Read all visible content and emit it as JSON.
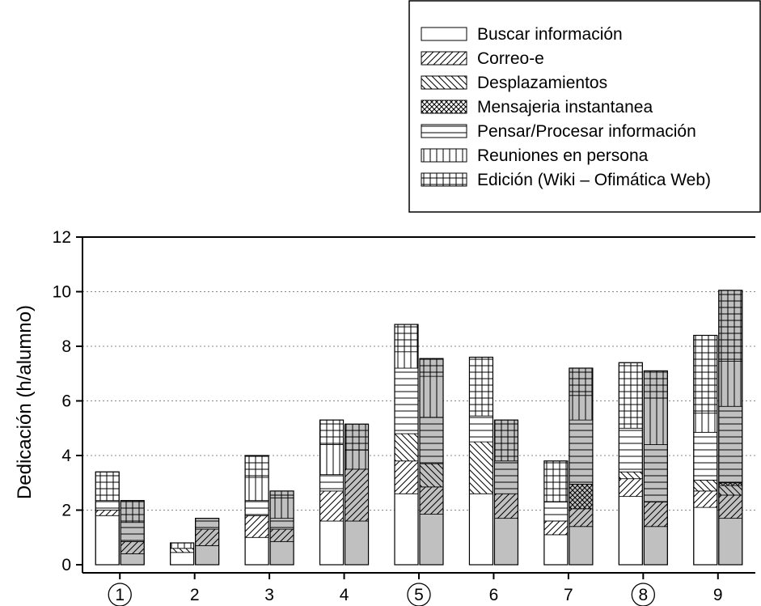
{
  "chart_data": {
    "type": "bar",
    "stacked": true,
    "grouped_pairs": true,
    "ylabel": "Dedicación (h/alumno)",
    "xlabel": "",
    "ylim": [
      0,
      12
    ],
    "yticks": [
      0,
      2,
      4,
      6,
      8,
      10,
      12
    ],
    "grid": "horizontal-dotted",
    "legend_position": "top-right",
    "categories": [
      "1",
      "2",
      "3",
      "4",
      "5",
      "6",
      "7",
      "8",
      "9"
    ],
    "circled_categories": [
      "1",
      "5",
      "8"
    ],
    "series": [
      {
        "name": "Buscar información",
        "pattern": "blank"
      },
      {
        "name": "Correo-e",
        "pattern": "hatch-forward"
      },
      {
        "name": "Desplazamientos",
        "pattern": "hatch-back"
      },
      {
        "name": "Mensajeria instantanea",
        "pattern": "crosshatch"
      },
      {
        "name": "Pensar/Procesar información",
        "pattern": "horizontal"
      },
      {
        "name": "Reuniones en persona",
        "pattern": "vertical"
      },
      {
        "name": "Edición (Wiki – Ofimática Web)",
        "pattern": "grid"
      }
    ],
    "bars": [
      {
        "category": "1",
        "shaded": false,
        "segments": [
          1.8,
          0.2,
          0.0,
          0.0,
          0.35,
          0.0,
          1.05
        ],
        "total": 3.4
      },
      {
        "category": "1",
        "shaded": true,
        "segments": [
          0.4,
          0.45,
          0.0,
          0.0,
          0.7,
          0.0,
          0.8
        ],
        "total": 2.35
      },
      {
        "category": "2",
        "shaded": false,
        "segments": [
          0.45,
          0.0,
          0.15,
          0.0,
          0.0,
          0.2,
          0.0
        ],
        "total": 0.8
      },
      {
        "category": "2",
        "shaded": true,
        "segments": [
          0.7,
          0.6,
          0.0,
          0.0,
          0.4,
          0.0,
          0.0
        ],
        "total": 1.7
      },
      {
        "category": "3",
        "shaded": false,
        "segments": [
          1.0,
          0.8,
          0.0,
          0.0,
          0.55,
          0.85,
          0.8
        ],
        "total": 4.0
      },
      {
        "category": "3",
        "shaded": true,
        "segments": [
          0.85,
          0.45,
          0.0,
          0.0,
          0.4,
          0.75,
          0.25
        ],
        "total": 2.7
      },
      {
        "category": "4",
        "shaded": false,
        "segments": [
          1.6,
          1.1,
          0.0,
          0.0,
          0.6,
          1.1,
          0.9
        ],
        "total": 5.3
      },
      {
        "category": "4",
        "shaded": true,
        "segments": [
          1.6,
          1.9,
          0.0,
          0.0,
          0.0,
          0.7,
          0.95
        ],
        "total": 5.15
      },
      {
        "category": "5",
        "shaded": false,
        "segments": [
          2.6,
          1.2,
          1.0,
          0.0,
          2.4,
          0.6,
          1.0
        ],
        "total": 8.8
      },
      {
        "category": "5",
        "shaded": true,
        "segments": [
          1.85,
          1.0,
          0.85,
          0.0,
          1.7,
          1.5,
          0.65
        ],
        "total": 7.55
      },
      {
        "category": "6",
        "shaded": false,
        "segments": [
          2.6,
          0.0,
          1.9,
          0.0,
          0.95,
          0.0,
          2.15
        ],
        "total": 7.6
      },
      {
        "category": "6",
        "shaded": true,
        "segments": [
          1.7,
          0.9,
          0.0,
          0.0,
          1.2,
          0.0,
          1.5
        ],
        "total": 5.3
      },
      {
        "category": "7",
        "shaded": false,
        "segments": [
          1.1,
          0.5,
          0.0,
          0.0,
          0.7,
          0.0,
          1.5
        ],
        "total": 3.8
      },
      {
        "category": "7",
        "shaded": true,
        "segments": [
          1.4,
          0.65,
          0.0,
          0.9,
          2.35,
          0.9,
          1.0
        ],
        "total": 7.2
      },
      {
        "category": "8",
        "shaded": false,
        "segments": [
          2.5,
          0.65,
          0.25,
          0.0,
          1.6,
          0.0,
          2.4
        ],
        "total": 7.4
      },
      {
        "category": "8",
        "shaded": true,
        "segments": [
          1.4,
          0.9,
          0.0,
          0.0,
          2.1,
          1.7,
          1.0
        ],
        "total": 7.1
      },
      {
        "category": "9",
        "shaded": false,
        "segments": [
          2.1,
          0.6,
          0.4,
          0.0,
          1.75,
          0.7,
          2.85
        ],
        "total": 8.4
      },
      {
        "category": "9",
        "shaded": true,
        "segments": [
          1.7,
          0.85,
          0.35,
          0.1,
          2.8,
          1.65,
          2.6
        ],
        "total": 10.05
      }
    ]
  }
}
